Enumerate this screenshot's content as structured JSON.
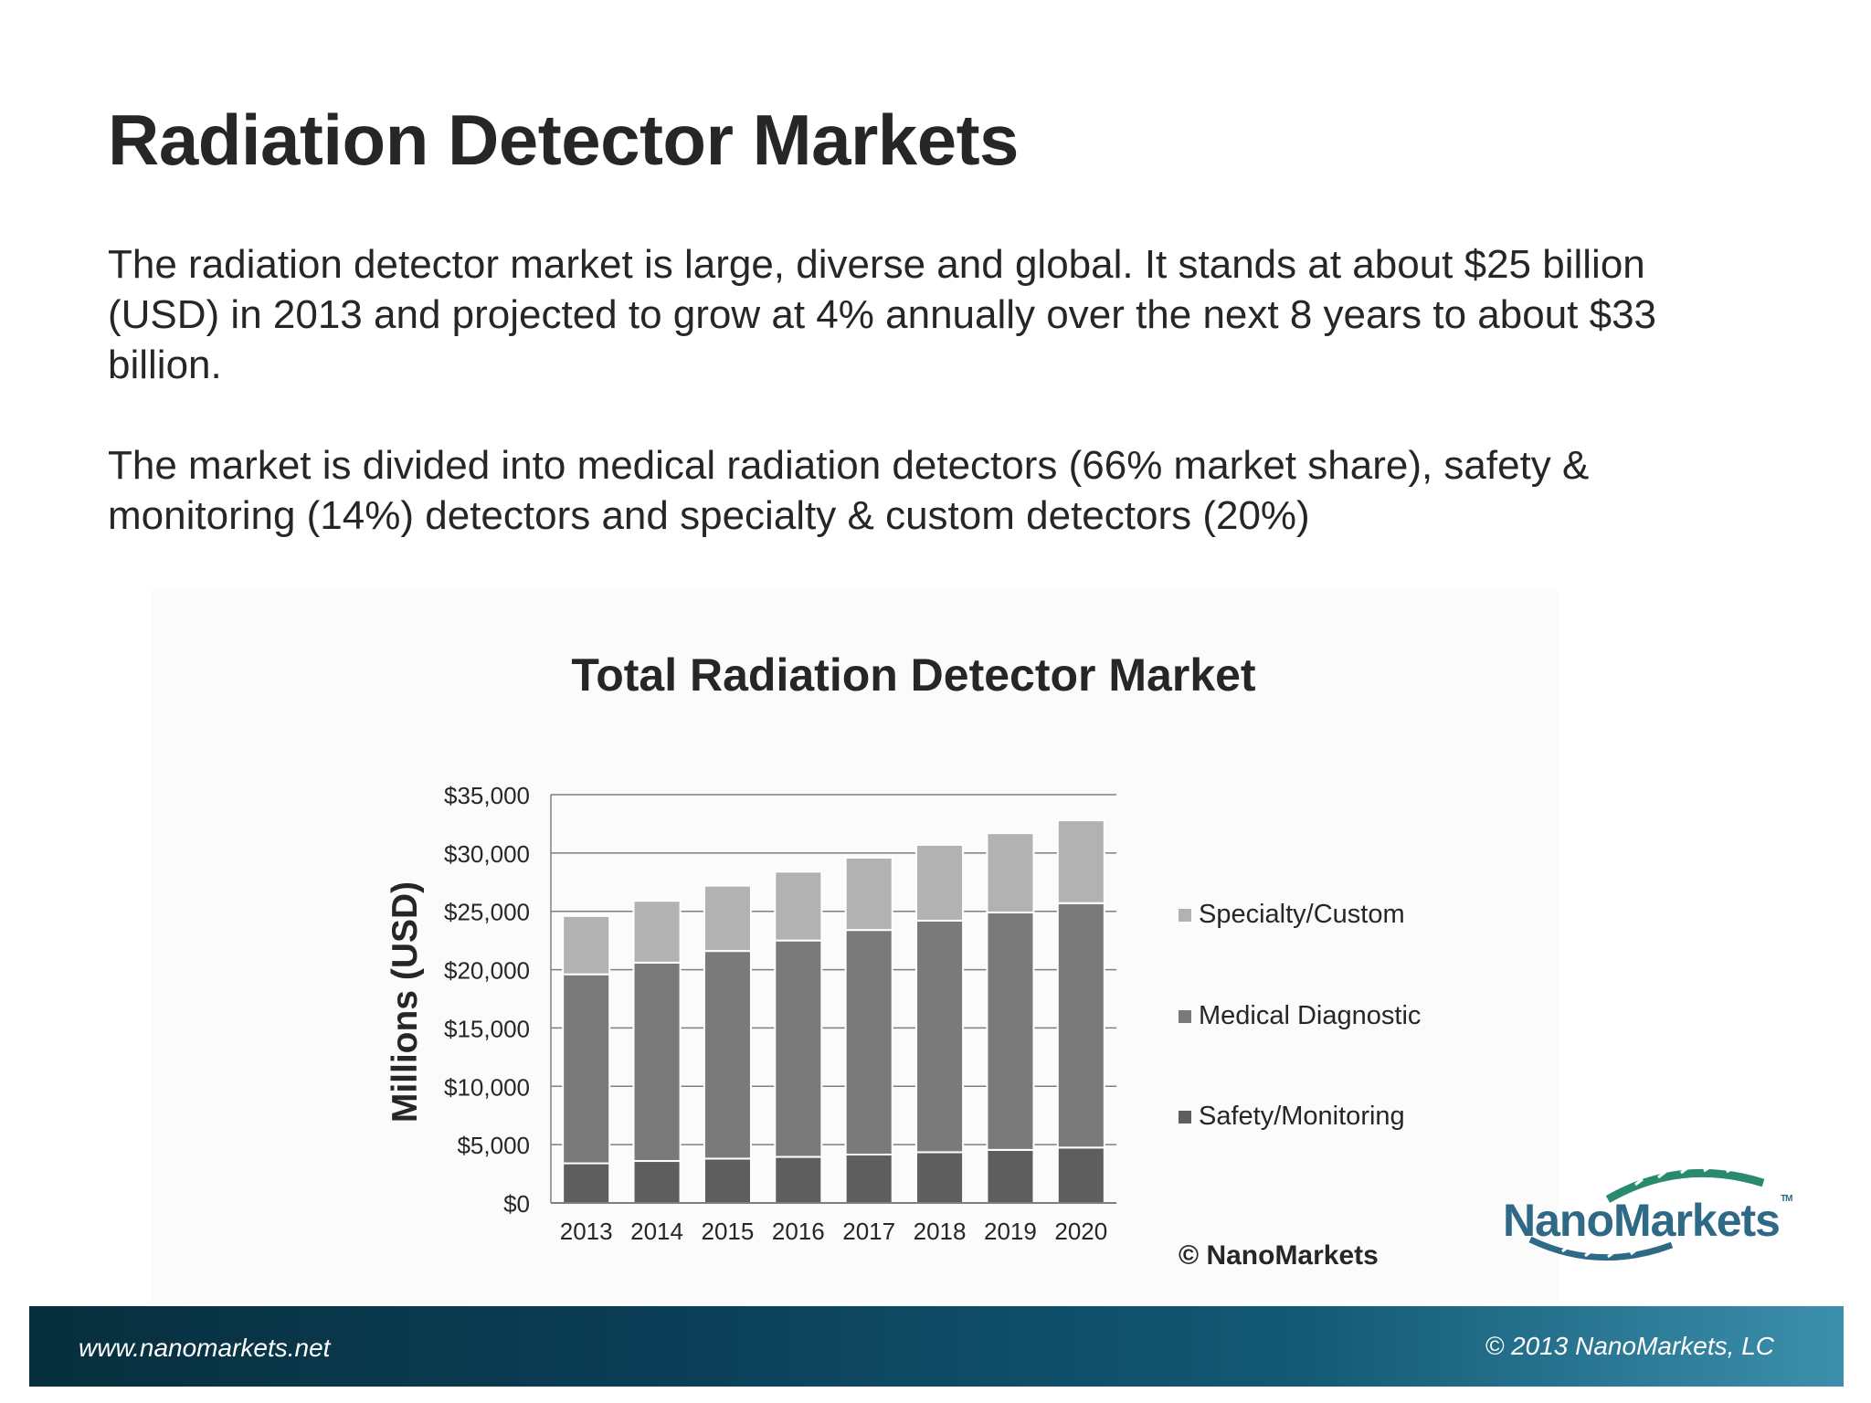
{
  "slide": {
    "title": "Radiation Detector Markets",
    "paragraph1": "The radiation detector market is large, diverse and global. It stands at about $25 billion (USD) in 2013 and projected to grow at 4% annually over the next 8 years to about $33 billion.",
    "paragraph2": "The market is divided into medical radiation detectors (66% market share), safety & monitoring (14%) detectors and specialty & custom detectors (20%)"
  },
  "chart_data": {
    "type": "bar",
    "stacked": true,
    "title": "Total Radiation Detector Market",
    "xlabel": "",
    "ylabel": "Millions (USD)",
    "categories": [
      "2013",
      "2014",
      "2015",
      "2016",
      "2017",
      "2018",
      "2019",
      "2020"
    ],
    "ylim": [
      0,
      35000
    ],
    "yticks": [
      0,
      5000,
      10000,
      15000,
      20000,
      25000,
      30000,
      35000
    ],
    "ytick_labels": [
      "$0",
      "$5,000",
      "$10,000",
      "$15,000",
      "$20,000",
      "$25,000",
      "$30,000",
      "$35,000"
    ],
    "grid": true,
    "legend_position": "right",
    "series": [
      {
        "name": "Safety/Monitoring",
        "color": "#5f5e5f",
        "values": [
          3400,
          3600,
          3800,
          3950,
          4150,
          4350,
          4550,
          4750
        ]
      },
      {
        "name": "Medical Diagnostic",
        "color": "#7b7a7b",
        "values": [
          16200,
          17000,
          17800,
          18550,
          19250,
          19850,
          20350,
          20950
        ]
      },
      {
        "name": "Specialty/Custom",
        "color": "#b3b2b3",
        "values": [
          5000,
          5300,
          5600,
          5900,
          6200,
          6500,
          6800,
          7100
        ]
      }
    ],
    "credit": "© NanoMarkets"
  },
  "logo": {
    "text": "NanoMarkets",
    "tm": "TM"
  },
  "footer": {
    "website": "www.nanomarkets.net",
    "copyright": "© 2013 NanoMarkets, LC"
  },
  "colors": {
    "footer_dark": "#072f3d",
    "footer_light": "#3c8fac",
    "logo_blue": "#2e6a86",
    "logo_green": "#2a8a6e"
  }
}
